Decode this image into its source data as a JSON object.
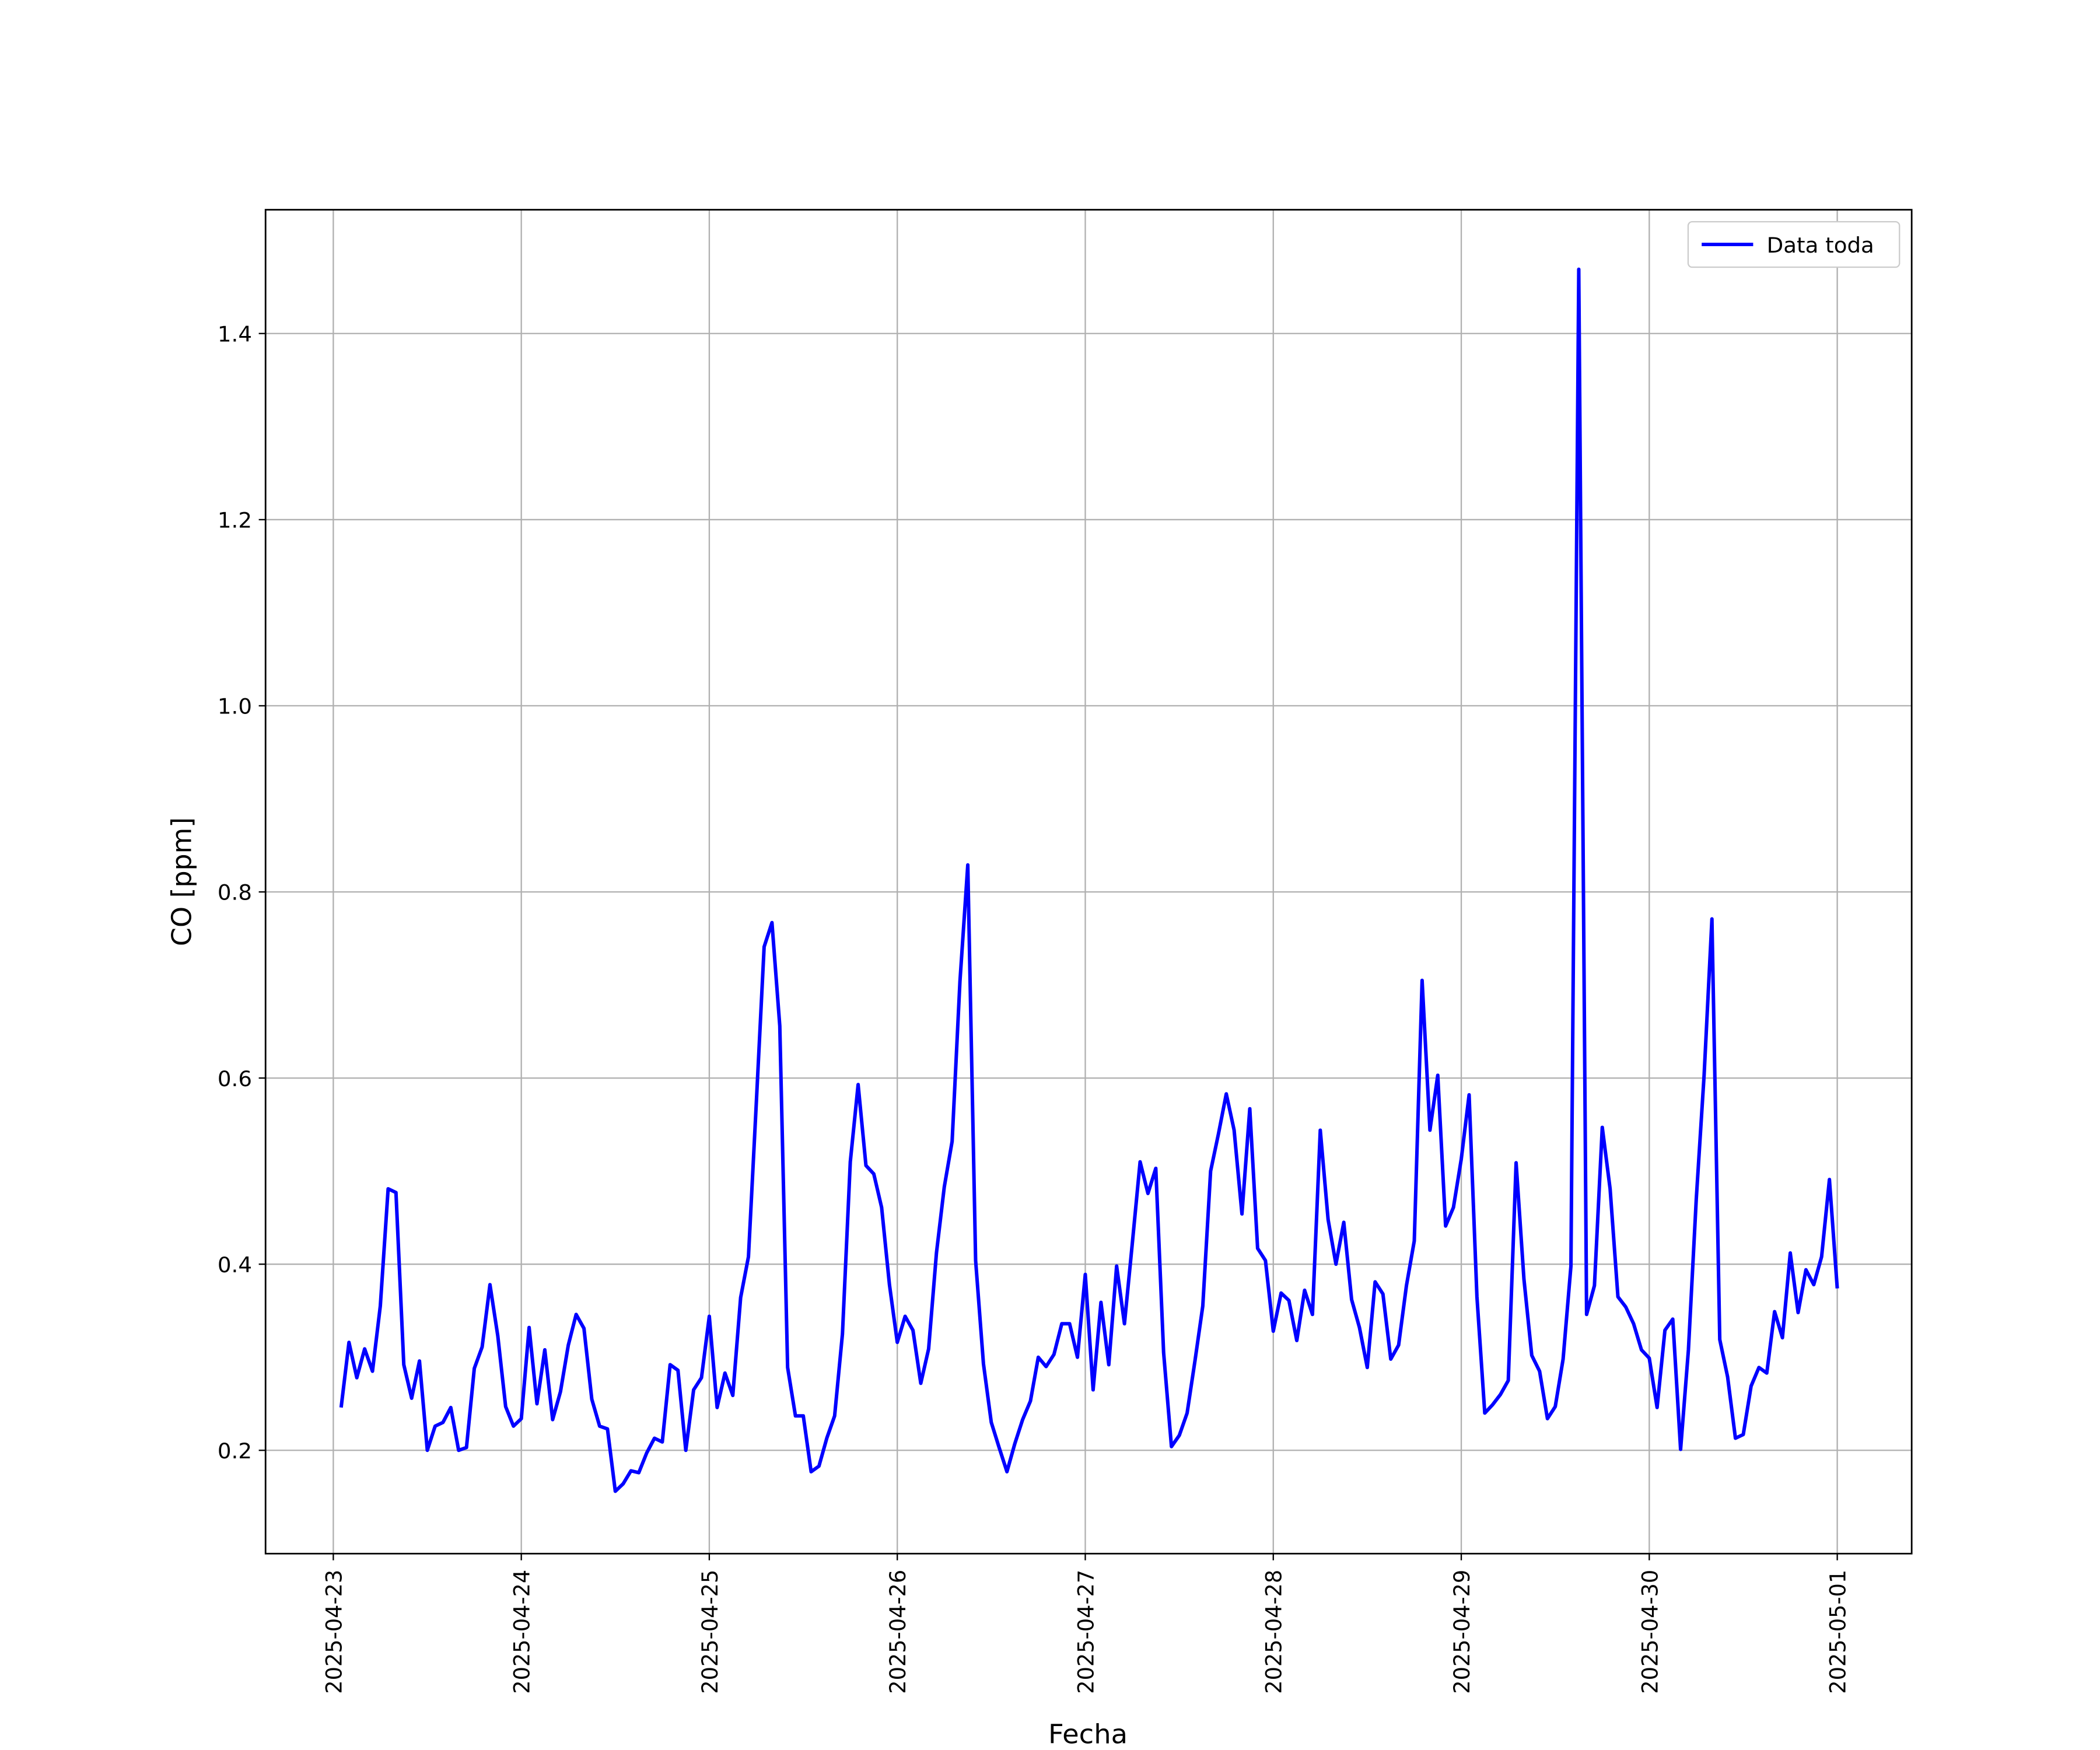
{
  "chart_data": {
    "type": "line",
    "x_label": "Fecha",
    "y_label": "CO [ppm]",
    "x": [
      1,
      2,
      3,
      4,
      5,
      6,
      7,
      8,
      9,
      10,
      11,
      12,
      13,
      14,
      15,
      16,
      17,
      18,
      19,
      20,
      21,
      22,
      23,
      24,
      25,
      26,
      27,
      28,
      29,
      30,
      31,
      32,
      33,
      34,
      35,
      36,
      37,
      38,
      39,
      40,
      41,
      42,
      43,
      44,
      45,
      46,
      47,
      48,
      49,
      50,
      51,
      52,
      53,
      54,
      55,
      56,
      57,
      58,
      59,
      60,
      61,
      62,
      63,
      64,
      65,
      66,
      67,
      68,
      69,
      70,
      71,
      72,
      73,
      74,
      75,
      76,
      77,
      78,
      79,
      80,
      81,
      82,
      83,
      84,
      85,
      86,
      87,
      88,
      89,
      90,
      91,
      92,
      93,
      94,
      95,
      96,
      97,
      98,
      99,
      100,
      101,
      102,
      103,
      104,
      105,
      106,
      107,
      108,
      109,
      110,
      111,
      112,
      113,
      114,
      115,
      116,
      117,
      118,
      119,
      120,
      121,
      122,
      123,
      124,
      125,
      126,
      127,
      128,
      129,
      130,
      131,
      132,
      133,
      134,
      135,
      136,
      137,
      138,
      139,
      140,
      141,
      142,
      143,
      144,
      145,
      146,
      147,
      148,
      149,
      150,
      151,
      152,
      153,
      154,
      155,
      156,
      157,
      158,
      159,
      160,
      161,
      162,
      163,
      164,
      165,
      166,
      167,
      168,
      169,
      170,
      171,
      172,
      173,
      174,
      175,
      176,
      177,
      178,
      179,
      180,
      181,
      182,
      183,
      184,
      185,
      186,
      187,
      188,
      189,
      190,
      191,
      192
    ],
    "series": [
      {
        "name": "Data toda",
        "color": "#0000ff",
        "values": [
          0.246,
          0.316,
          0.278,
          0.309,
          0.285,
          0.355,
          0.481,
          0.477,
          0.292,
          0.256,
          0.296,
          0.2,
          0.226,
          0.23,
          0.246,
          0.2,
          0.203,
          0.288,
          0.311,
          0.378,
          0.323,
          0.247,
          0.226,
          0.234,
          0.332,
          0.25,
          0.308,
          0.233,
          0.263,
          0.313,
          0.346,
          0.331,
          0.255,
          0.226,
          0.223,
          0.156,
          0.164,
          0.178,
          0.176,
          0.197,
          0.213,
          0.209,
          0.292,
          0.286,
          0.2,
          0.265,
          0.278,
          0.344,
          0.246,
          0.283,
          0.259,
          0.364,
          0.408,
          0.573,
          0.741,
          0.767,
          0.656,
          0.289,
          0.237,
          0.237,
          0.177,
          0.183,
          0.213,
          0.237,
          0.325,
          0.51,
          0.593,
          0.506,
          0.497,
          0.461,
          0.378,
          0.316,
          0.344,
          0.329,
          0.272,
          0.309,
          0.412,
          0.483,
          0.532,
          0.704,
          0.829,
          0.404,
          0.293,
          0.23,
          0.203,
          0.177,
          0.207,
          0.233,
          0.253,
          0.3,
          0.29,
          0.303,
          0.336,
          0.336,
          0.3,
          0.389,
          0.265,
          0.359,
          0.292,
          0.398,
          0.336,
          0.422,
          0.51,
          0.476,
          0.503,
          0.305,
          0.204,
          0.216,
          0.24,
          0.296,
          0.355,
          0.5,
          0.54,
          0.583,
          0.544,
          0.454,
          0.567,
          0.417,
          0.404,
          0.328,
          0.369,
          0.361,
          0.318,
          0.372,
          0.346,
          0.544,
          0.448,
          0.4,
          0.445,
          0.362,
          0.332,
          0.289,
          0.381,
          0.368,
          0.298,
          0.313,
          0.377,
          0.425,
          0.705,
          0.544,
          0.603,
          0.441,
          0.461,
          0.513,
          0.582,
          0.365,
          0.24,
          0.249,
          0.26,
          0.275,
          0.509,
          0.384,
          0.302,
          0.285,
          0.234,
          0.247,
          0.298,
          0.398,
          1.469,
          0.346,
          0.377,
          0.547,
          0.481,
          0.365,
          0.354,
          0.336,
          0.308,
          0.299,
          0.246,
          0.329,
          0.341,
          0.201,
          0.308,
          0.47,
          0.603,
          0.771,
          0.319,
          0.279,
          0.213,
          0.217,
          0.269,
          0.289,
          0.283,
          0.349,
          0.321,
          0.412,
          0.348,
          0.394,
          0.378,
          0.408,
          0.491,
          0.374
        ]
      }
    ],
    "xlim": [
      -8.65,
      201.5
    ],
    "xticks": [
      {
        "value": 0,
        "label": "2025-04-23"
      },
      {
        "value": 24,
        "label": "2025-04-24"
      },
      {
        "value": 48,
        "label": "2025-04-25"
      },
      {
        "value": 72,
        "label": "2025-04-26"
      },
      {
        "value": 96,
        "label": "2025-04-27"
      },
      {
        "value": 120,
        "label": "2025-04-28"
      },
      {
        "value": 144,
        "label": "2025-04-29"
      },
      {
        "value": 168,
        "label": "2025-04-30"
      },
      {
        "value": 192,
        "label": "2025-05-01"
      }
    ],
    "ylim": [
      0.089,
      1.533
    ],
    "yticks": [
      0.2,
      0.4,
      0.6,
      0.8,
      {
        "value": 1.0,
        "label": "1.0"
      },
      1.2,
      1.4
    ],
    "grid": true,
    "legend": "upper right"
  }
}
